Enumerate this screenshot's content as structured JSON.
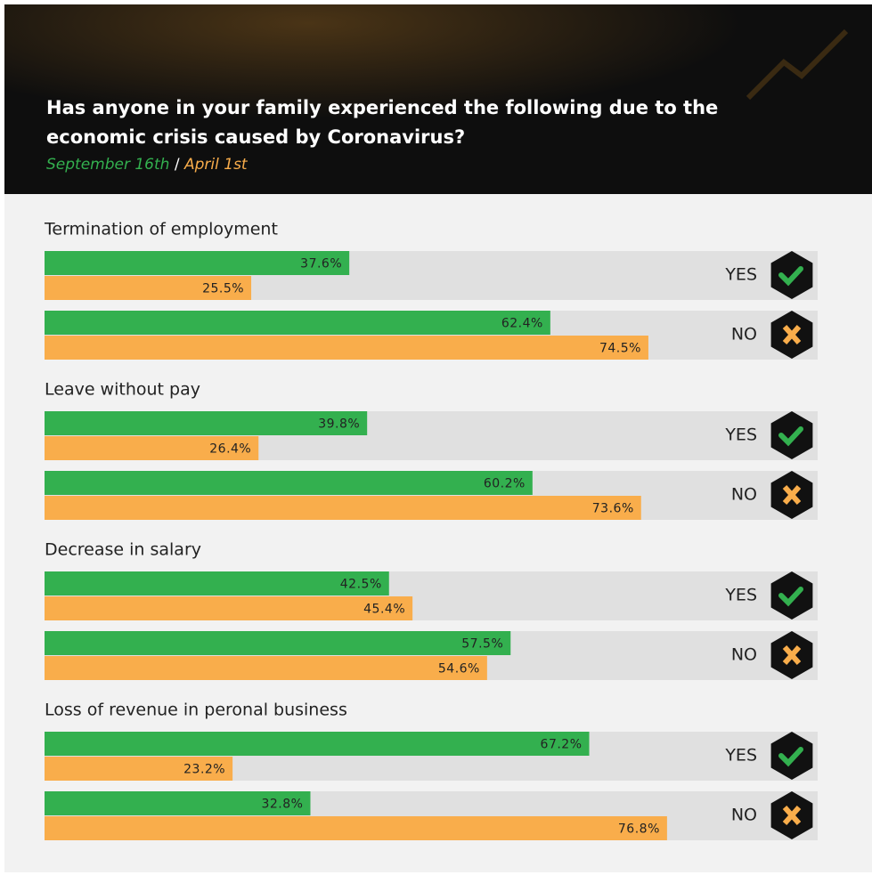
{
  "chart_data": {
    "type": "paired-bar",
    "title": [
      "Has anyone in your family experienced the following due to the",
      "economic crisis caused by Coronavirus?"
    ],
    "legend_separator": "/",
    "categories": [
      "Termination of employment",
      "Leave without pay",
      "Decrease in salary",
      "Loss of revenue in peronal business"
    ],
    "answers": [
      "YES",
      "NO"
    ],
    "xlim": [
      0,
      100
    ],
    "series": [
      {
        "name": "September 16th",
        "color": "#33b04f",
        "values": [
          [
            37.6,
            62.4
          ],
          [
            39.8,
            60.2
          ],
          [
            42.5,
            57.5
          ],
          [
            67.2,
            32.8
          ]
        ],
        "value_labels": [
          [
            "37.6%",
            "62.4%"
          ],
          [
            "39.8%",
            "60.2%"
          ],
          [
            "42.5%",
            "57.5%"
          ],
          [
            "67.2%",
            "32.8%"
          ]
        ]
      },
      {
        "name": "April 1st",
        "color": "#f9ad4b",
        "values": [
          [
            25.5,
            74.5
          ],
          [
            26.4,
            73.6
          ],
          [
            45.4,
            54.6
          ],
          [
            23.2,
            76.8
          ]
        ],
        "value_labels": [
          [
            "25.5%",
            "74.5%"
          ],
          [
            "26.4%",
            "73.6%"
          ],
          [
            "45.4%",
            "54.6%"
          ],
          [
            "23.2%",
            "76.8%"
          ]
        ]
      }
    ]
  }
}
